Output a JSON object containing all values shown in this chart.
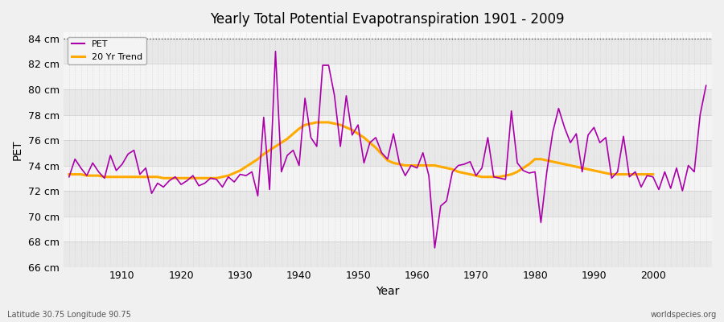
{
  "title": "Yearly Total Potential Evapotranspiration 1901 - 2009",
  "xlabel": "Year",
  "ylabel": "PET",
  "subtitle_left": "Latitude 30.75 Longitude 90.75",
  "subtitle_right": "worldspecies.org",
  "ylim": [
    66,
    84.5
  ],
  "yticks": [
    66,
    68,
    70,
    72,
    74,
    76,
    78,
    80,
    82,
    84
  ],
  "ytick_labels": [
    "66 cm",
    "68 cm",
    "70 cm",
    "72 cm",
    "74 cm",
    "76 cm",
    "78 cm",
    "80 cm",
    "82 cm",
    "84 cm"
  ],
  "years": [
    1901,
    1902,
    1903,
    1904,
    1905,
    1906,
    1907,
    1908,
    1909,
    1910,
    1911,
    1912,
    1913,
    1914,
    1915,
    1916,
    1917,
    1918,
    1919,
    1920,
    1921,
    1922,
    1923,
    1924,
    1925,
    1926,
    1927,
    1928,
    1929,
    1930,
    1931,
    1932,
    1933,
    1934,
    1935,
    1936,
    1937,
    1938,
    1939,
    1940,
    1941,
    1942,
    1943,
    1944,
    1945,
    1946,
    1947,
    1948,
    1949,
    1950,
    1951,
    1952,
    1953,
    1954,
    1955,
    1956,
    1957,
    1958,
    1959,
    1960,
    1961,
    1962,
    1963,
    1964,
    1965,
    1966,
    1967,
    1968,
    1969,
    1970,
    1971,
    1972,
    1973,
    1974,
    1975,
    1976,
    1977,
    1978,
    1979,
    1980,
    1981,
    1982,
    1983,
    1984,
    1985,
    1986,
    1987,
    1988,
    1989,
    1990,
    1991,
    1992,
    1993,
    1994,
    1995,
    1996,
    1997,
    1998,
    1999,
    2000,
    2001,
    2002,
    2003,
    2004,
    2005,
    2006,
    2007,
    2008,
    2009
  ],
  "pet": [
    73.1,
    74.5,
    73.8,
    73.2,
    74.2,
    73.5,
    73.0,
    74.8,
    73.6,
    74.1,
    74.9,
    75.2,
    73.3,
    73.8,
    71.8,
    72.6,
    72.3,
    72.8,
    73.1,
    72.5,
    72.8,
    73.2,
    72.4,
    72.6,
    73.0,
    72.9,
    72.3,
    73.1,
    72.7,
    73.3,
    73.2,
    73.5,
    71.6,
    77.8,
    72.1,
    83.0,
    73.5,
    74.8,
    75.2,
    74.0,
    79.3,
    76.2,
    75.5,
    81.9,
    81.9,
    79.5,
    75.5,
    79.5,
    76.4,
    77.2,
    74.2,
    75.8,
    76.2,
    75.0,
    74.5,
    76.5,
    74.2,
    73.2,
    74.0,
    73.8,
    75.0,
    73.2,
    67.5,
    70.8,
    71.2,
    73.5,
    74.0,
    74.1,
    74.3,
    73.2,
    73.8,
    76.2,
    73.1,
    73.0,
    72.9,
    78.3,
    74.2,
    73.6,
    73.4,
    73.5,
    69.5,
    73.5,
    76.6,
    78.5,
    77.0,
    75.8,
    76.5,
    73.5,
    76.4,
    77.0,
    75.8,
    76.2,
    73.0,
    73.5,
    76.3,
    73.1,
    73.5,
    72.3,
    73.2,
    73.1,
    72.1,
    73.5,
    72.2,
    73.8,
    72.0,
    74.0,
    73.5,
    78.0,
    80.3
  ],
  "trend": [
    73.3,
    73.3,
    73.3,
    73.2,
    73.2,
    73.2,
    73.1,
    73.1,
    73.1,
    73.1,
    73.1,
    73.1,
    73.1,
    73.1,
    73.1,
    73.1,
    73.0,
    73.0,
    73.0,
    73.0,
    73.0,
    73.0,
    73.0,
    73.0,
    73.0,
    73.0,
    73.1,
    73.2,
    73.4,
    73.6,
    73.9,
    74.2,
    74.5,
    74.9,
    75.2,
    75.5,
    75.8,
    76.1,
    76.5,
    76.9,
    77.2,
    77.3,
    77.4,
    77.4,
    77.4,
    77.3,
    77.2,
    77.0,
    76.8,
    76.5,
    76.2,
    75.8,
    75.4,
    74.9,
    74.4,
    74.2,
    74.1,
    74.0,
    74.0,
    74.0,
    74.0,
    74.0,
    74.0,
    73.9,
    73.8,
    73.7,
    73.5,
    73.4,
    73.3,
    73.2,
    73.1,
    73.1,
    73.1,
    73.1,
    73.2,
    73.3,
    73.5,
    73.8,
    74.1,
    74.5,
    74.5,
    74.4,
    74.3,
    74.2,
    74.1,
    74.0,
    73.9,
    73.8,
    73.7,
    73.6,
    73.5,
    73.4,
    73.3,
    73.3,
    73.3,
    73.3,
    73.3,
    73.3,
    73.3,
    73.3,
    null,
    null,
    null,
    null,
    null,
    null,
    null,
    null,
    null
  ],
  "pet_color": "#aa00aa",
  "trend_color": "#ffaa00",
  "bg_color": "#f0f0f0",
  "plot_bg_color": "#f8f8f8",
  "band_color_dark": "#e8e8e8",
  "band_color_light": "#f4f4f4",
  "grid_color": "#cccccc",
  "legend_bg": "#f5f5f5",
  "dotted_line_y": 84,
  "xticks": [
    1910,
    1920,
    1930,
    1940,
    1950,
    1960,
    1970,
    1980,
    1990,
    2000
  ]
}
